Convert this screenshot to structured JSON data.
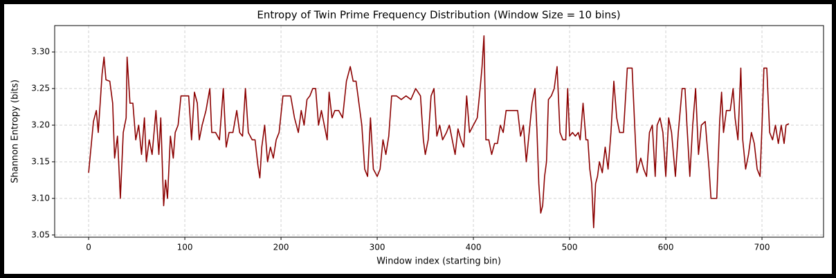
{
  "chart_data": {
    "type": "line",
    "title": "Entropy of Twin Prime Frequency Distribution (Window Size = 10 bins)",
    "x_label": "Window index (starting bin)",
    "y_label": "Shannon Entropy (bits)",
    "xlim": [
      -35.3,
      764
    ],
    "ylim": [
      3.047,
      3.336
    ],
    "xticks": [
      0,
      100,
      200,
      300,
      400,
      500,
      600,
      700
    ],
    "yticks": [
      3.05,
      {
        "value": 3.1,
        "label": "3.10"
      },
      3.15,
      {
        "value": 3.2,
        "label": "3.20"
      },
      3.25,
      {
        "value": 3.3,
        "label": "3.30"
      }
    ],
    "grid": true,
    "series": [
      {
        "color": "#8b0000",
        "x": [
          0,
          5,
          8,
          10,
          14,
          16,
          18,
          22,
          25,
          27,
          30,
          33,
          36,
          39,
          40,
          43,
          46,
          49,
          52,
          55,
          58,
          60,
          63,
          66,
          70,
          73,
          75,
          78,
          80,
          82,
          85,
          88,
          90,
          93,
          96,
          100,
          104,
          107,
          110,
          113,
          115,
          118,
          122,
          126,
          128,
          132,
          136,
          140,
          143,
          146,
          150,
          154,
          157,
          160,
          163,
          166,
          170,
          173,
          176,
          178,
          180,
          183,
          186,
          189,
          192,
          195,
          198,
          202,
          206,
          210,
          214,
          218,
          221,
          224,
          227,
          230,
          233,
          236,
          239,
          242,
          245,
          248,
          250,
          253,
          256,
          260,
          264,
          268,
          272,
          275,
          278,
          281,
          284,
          287,
          290,
          293,
          296,
          300,
          303,
          306,
          309,
          312,
          315,
          320,
          325,
          330,
          335,
          340,
          345,
          348,
          350,
          353,
          356,
          359,
          362,
          365,
          368,
          372,
          375,
          378,
          381,
          384,
          387,
          390,
          393,
          396,
          400,
          404,
          407,
          409,
          411,
          413,
          416,
          419,
          422,
          425,
          428,
          431,
          434,
          440,
          446,
          449,
          452,
          455,
          458,
          461,
          464,
          466,
          468,
          470,
          472,
          474,
          476,
          478,
          481,
          484,
          487,
          490,
          493,
          496,
          498,
          500,
          503,
          506,
          509,
          511,
          514,
          517,
          519,
          521,
          523,
          525,
          527,
          529,
          531,
          534,
          537,
          540,
          543,
          546,
          549,
          552,
          556,
          560,
          565,
          568,
          570,
          574,
          577,
          580,
          583,
          586,
          589,
          591,
          594,
          597,
          600,
          603,
          606,
          610,
          613,
          617,
          620,
          622,
          625,
          628,
          631,
          634,
          637,
          641,
          645,
          647,
          650,
          653,
          656,
          658,
          660,
          663,
          667,
          670,
          672,
          675,
          678,
          680,
          683,
          686,
          689,
          692,
          695,
          698,
          700,
          702,
          705,
          708,
          711,
          714,
          717,
          720,
          723,
          725,
          728
        ],
        "values": [
          3.135,
          3.205,
          3.22,
          3.19,
          3.27,
          3.293,
          3.262,
          3.26,
          3.23,
          3.155,
          3.185,
          3.1,
          3.19,
          3.21,
          3.293,
          3.23,
          3.23,
          3.18,
          3.2,
          3.16,
          3.21,
          3.15,
          3.18,
          3.16,
          3.22,
          3.16,
          3.21,
          3.09,
          3.125,
          3.1,
          3.185,
          3.155,
          3.19,
          3.2,
          3.24,
          3.24,
          3.24,
          3.18,
          3.245,
          3.23,
          3.18,
          3.2,
          3.22,
          3.25,
          3.19,
          3.19,
          3.18,
          3.25,
          3.17,
          3.19,
          3.19,
          3.22,
          3.19,
          3.185,
          3.25,
          3.19,
          3.18,
          3.18,
          3.145,
          3.128,
          3.17,
          3.2,
          3.15,
          3.17,
          3.155,
          3.18,
          3.19,
          3.24,
          3.24,
          3.24,
          3.21,
          3.19,
          3.22,
          3.2,
          3.235,
          3.24,
          3.25,
          3.25,
          3.2,
          3.22,
          3.2,
          3.18,
          3.245,
          3.21,
          3.22,
          3.22,
          3.21,
          3.26,
          3.28,
          3.26,
          3.26,
          3.23,
          3.2,
          3.14,
          3.13,
          3.21,
          3.14,
          3.13,
          3.14,
          3.18,
          3.16,
          3.185,
          3.24,
          3.24,
          3.235,
          3.24,
          3.235,
          3.25,
          3.24,
          3.18,
          3.16,
          3.18,
          3.24,
          3.25,
          3.185,
          3.2,
          3.18,
          3.19,
          3.2,
          3.18,
          3.16,
          3.195,
          3.18,
          3.17,
          3.24,
          3.19,
          3.2,
          3.21,
          3.25,
          3.28,
          3.322,
          3.18,
          3.18,
          3.16,
          3.175,
          3.175,
          3.2,
          3.19,
          3.22,
          3.22,
          3.22,
          3.185,
          3.2,
          3.15,
          3.19,
          3.23,
          3.25,
          3.195,
          3.12,
          3.08,
          3.09,
          3.13,
          3.15,
          3.235,
          3.24,
          3.25,
          3.28,
          3.19,
          3.18,
          3.18,
          3.25,
          3.185,
          3.19,
          3.185,
          3.19,
          3.18,
          3.23,
          3.18,
          3.18,
          3.14,
          3.12,
          3.06,
          3.12,
          3.13,
          3.15,
          3.135,
          3.17,
          3.14,
          3.19,
          3.26,
          3.21,
          3.19,
          3.19,
          3.278,
          3.278,
          3.19,
          3.135,
          3.155,
          3.14,
          3.13,
          3.19,
          3.2,
          3.13,
          3.2,
          3.21,
          3.19,
          3.13,
          3.21,
          3.19,
          3.13,
          3.19,
          3.25,
          3.25,
          3.2,
          3.13,
          3.2,
          3.25,
          3.16,
          3.2,
          3.205,
          3.14,
          3.1,
          3.1,
          3.1,
          3.205,
          3.245,
          3.19,
          3.22,
          3.22,
          3.25,
          3.21,
          3.18,
          3.278,
          3.18,
          3.14,
          3.16,
          3.19,
          3.175,
          3.14,
          3.13,
          3.198,
          3.278,
          3.278,
          3.19,
          3.18,
          3.2,
          3.175,
          3.2,
          3.175,
          3.2,
          3.202
        ]
      }
    ]
  }
}
